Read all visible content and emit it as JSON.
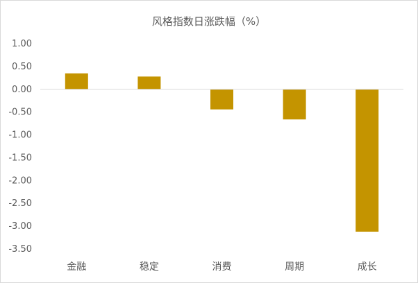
{
  "chart_data": {
    "type": "bar",
    "title": "风格指数日涨跌幅（%）",
    "categories": [
      "金融",
      "稳定",
      "消费",
      "周期",
      "成长"
    ],
    "values": [
      0.35,
      0.28,
      -0.44,
      -0.66,
      -3.12
    ],
    "ylim": [
      -3.5,
      1.0
    ],
    "yticks": [
      1.0,
      0.5,
      0.0,
      -0.5,
      -1.0,
      -1.5,
      -2.0,
      -2.5,
      -3.0,
      -3.5
    ],
    "ytick_labels": [
      "1.00",
      "0.50",
      "0.00",
      "-0.50",
      "-1.00",
      "-1.50",
      "-2.00",
      "-2.50",
      "-3.00",
      "-3.50"
    ],
    "bar_color": "#C49400",
    "axis_color": "#D9D9D9",
    "grid": false,
    "legend": "none"
  }
}
